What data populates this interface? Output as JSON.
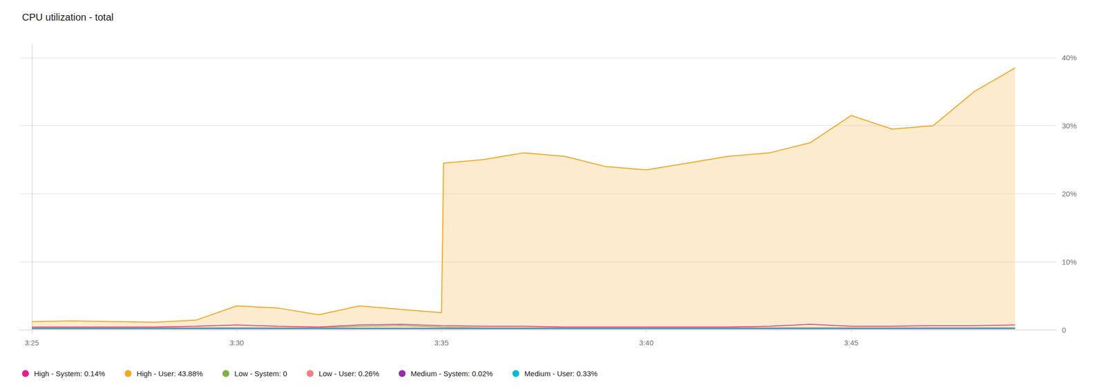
{
  "chart_data": {
    "type": "line",
    "title": "CPU utilization - total",
    "xlim": [
      -0.3,
      25
    ],
    "xticks": [
      {
        "value": 0,
        "label": "3:25"
      },
      {
        "value": 5,
        "label": "3:30"
      },
      {
        "value": 10,
        "label": "3:35"
      },
      {
        "value": 15,
        "label": "3:40"
      },
      {
        "value": 20,
        "label": "3:45"
      }
    ],
    "ylim": [
      -0.5,
      42
    ],
    "yticks": [
      0,
      {
        "value": 10,
        "label": "10%"
      },
      {
        "value": 20,
        "label": "20%"
      },
      {
        "value": 30,
        "label": "30%"
      },
      {
        "value": 40,
        "label": "40%"
      }
    ],
    "grid": true,
    "legend": "bottom",
    "series": [
      {
        "name": "High - System: 0.14%",
        "color": "#e91e8c",
        "type": "line",
        "x": [
          0,
          1,
          2,
          3,
          4,
          5,
          6,
          7,
          8,
          9,
          10,
          11,
          12,
          13,
          14,
          15,
          16,
          17,
          18,
          19,
          20,
          21,
          22,
          23,
          24
        ],
        "values": [
          0.4,
          0.4,
          0.4,
          0.4,
          0.5,
          0.7,
          0.5,
          0.4,
          0.7,
          0.8,
          0.6,
          0.5,
          0.5,
          0.4,
          0.4,
          0.4,
          0.4,
          0.4,
          0.5,
          0.8,
          0.5,
          0.5,
          0.6,
          0.6,
          0.7
        ]
      },
      {
        "name": "High - User: 43.88%",
        "color": "#f5a623",
        "type": "area",
        "x": [
          0,
          1,
          2,
          3,
          4,
          5,
          6,
          7,
          8,
          9,
          10,
          10.05,
          11,
          12,
          13,
          14,
          15,
          16,
          17,
          18,
          19,
          20,
          21,
          22,
          23,
          24
        ],
        "values": [
          1.2,
          1.3,
          1.2,
          1.1,
          1.4,
          3.5,
          3.2,
          2.2,
          3.5,
          3.0,
          2.5,
          24.5,
          25.0,
          26.0,
          25.5,
          24.0,
          23.5,
          24.5,
          25.5,
          26.0,
          27.5,
          31.5,
          29.5,
          30.0,
          35.0,
          38.5
        ]
      },
      {
        "name": "Low - System: 0",
        "color": "#7cb342",
        "type": "line",
        "x": [
          0,
          1,
          2,
          3,
          4,
          5,
          6,
          7,
          8,
          9,
          10,
          11,
          12,
          13,
          14,
          15,
          16,
          17,
          18,
          19,
          20,
          21,
          22,
          23,
          24
        ],
        "values": [
          0.3,
          0.3,
          0.3,
          0.3,
          0.3,
          0.3,
          0.3,
          0.3,
          0.5,
          0.6,
          0.4,
          0.3,
          0.3,
          0.3,
          0.3,
          0.3,
          0.3,
          0.3,
          0.3,
          0.3,
          0.3,
          0.3,
          0.3,
          0.3,
          0.3
        ]
      },
      {
        "name": "Low - User: 0.26%",
        "color": "#f08080",
        "type": "line",
        "x": [
          0,
          1,
          2,
          3,
          4,
          5,
          6,
          7,
          8,
          9,
          10,
          11,
          12,
          13,
          14,
          15,
          16,
          17,
          18,
          19,
          20,
          21,
          22,
          23,
          24
        ],
        "values": [
          0.25,
          0.25,
          0.25,
          0.25,
          0.25,
          0.25,
          0.25,
          0.25,
          0.25,
          0.25,
          0.25,
          0.25,
          0.25,
          0.25,
          0.25,
          0.25,
          0.25,
          0.25,
          0.25,
          0.25,
          0.25,
          0.25,
          0.25,
          0.25,
          0.25
        ]
      },
      {
        "name": "Medium - System: 0.02%",
        "color": "#9c27b0",
        "type": "line",
        "x": [
          0,
          1,
          2,
          3,
          4,
          5,
          6,
          7,
          8,
          9,
          10,
          11,
          12,
          13,
          14,
          15,
          16,
          17,
          18,
          19,
          20,
          21,
          22,
          23,
          24
        ],
        "values": [
          0.15,
          0.15,
          0.15,
          0.15,
          0.15,
          0.15,
          0.15,
          0.15,
          0.15,
          0.15,
          0.15,
          0.15,
          0.15,
          0.15,
          0.15,
          0.15,
          0.15,
          0.15,
          0.15,
          0.15,
          0.15,
          0.15,
          0.15,
          0.15,
          0.15
        ]
      },
      {
        "name": "Medium - User: 0.33%",
        "color": "#00bcd4",
        "type": "line",
        "x": [
          0,
          1,
          2,
          3,
          4,
          5,
          6,
          7,
          8,
          9,
          10,
          11,
          12,
          13,
          14,
          15,
          16,
          17,
          18,
          19,
          20,
          21,
          22,
          23,
          24
        ],
        "values": [
          0.2,
          0.2,
          0.2,
          0.2,
          0.2,
          0.2,
          0.2,
          0.2,
          0.2,
          0.2,
          0.2,
          0.2,
          0.2,
          0.2,
          0.2,
          0.2,
          0.2,
          0.2,
          0.2,
          0.2,
          0.2,
          0.2,
          0.2,
          0.2,
          0.2
        ]
      }
    ]
  }
}
